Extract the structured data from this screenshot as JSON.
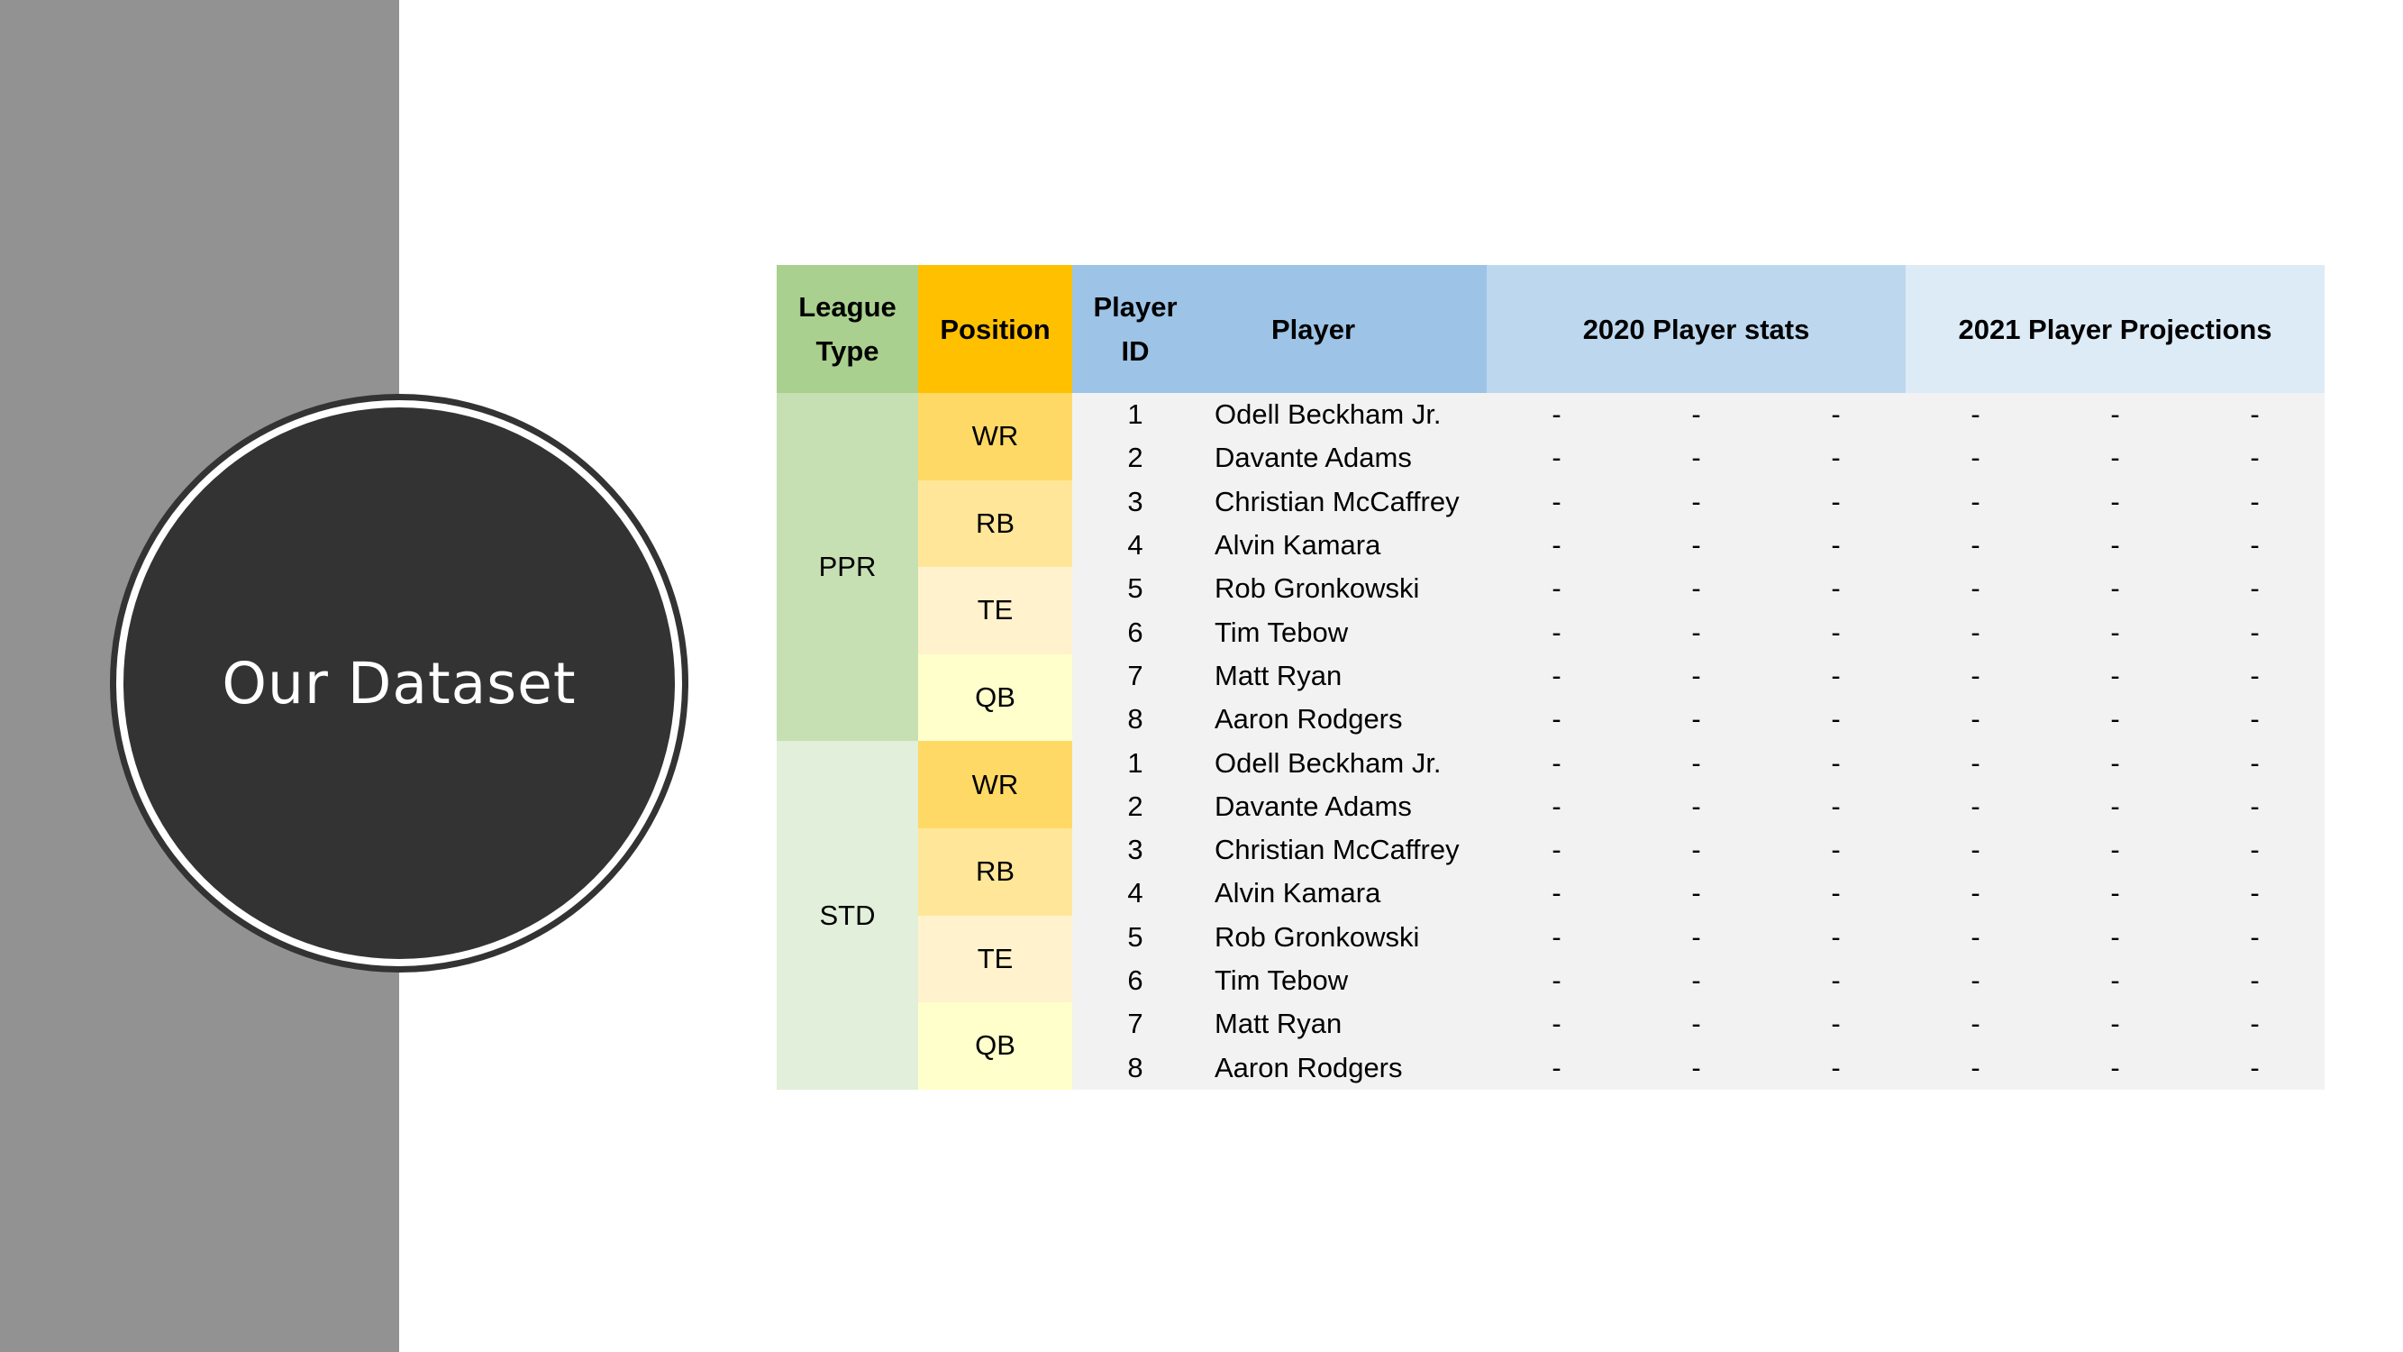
{
  "slide": {
    "title": "Our Dataset"
  },
  "table": {
    "headers": {
      "league_type": [
        "League",
        "Type"
      ],
      "position": "Position",
      "player_id": [
        "Player",
        "ID"
      ],
      "player": "Player",
      "stats_2020": "2020 Player stats",
      "proj_2021": "2021 Player Projections"
    },
    "groups": [
      {
        "league": "PPR",
        "positions": [
          {
            "pos": "WR",
            "players": [
              {
                "id": "1",
                "name": "Odell Beckham Jr."
              },
              {
                "id": "2",
                "name": "Davante Adams"
              }
            ]
          },
          {
            "pos": "RB",
            "players": [
              {
                "id": "3",
                "name": "Christian McCaffrey"
              },
              {
                "id": "4",
                "name": "Alvin Kamara"
              }
            ]
          },
          {
            "pos": "TE",
            "players": [
              {
                "id": "5",
                "name": "Rob Gronkowski"
              },
              {
                "id": "6",
                "name": "Tim Tebow"
              }
            ]
          },
          {
            "pos": "QB",
            "players": [
              {
                "id": "7",
                "name": "Matt Ryan"
              },
              {
                "id": "8",
                "name": "Aaron Rodgers"
              }
            ]
          }
        ]
      },
      {
        "league": "STD",
        "positions": [
          {
            "pos": "WR",
            "players": [
              {
                "id": "1",
                "name": "Odell Beckham Jr."
              },
              {
                "id": "2",
                "name": "Davante Adams"
              }
            ]
          },
          {
            "pos": "RB",
            "players": [
              {
                "id": "3",
                "name": "Christian McCaffrey"
              },
              {
                "id": "4",
                "name": "Alvin Kamara"
              }
            ]
          },
          {
            "pos": "TE",
            "players": [
              {
                "id": "5",
                "name": "Rob Gronkowski"
              },
              {
                "id": "6",
                "name": "Tim Tebow"
              }
            ]
          },
          {
            "pos": "QB",
            "players": [
              {
                "id": "7",
                "name": "Matt Ryan"
              },
              {
                "id": "8",
                "name": "Aaron Rodgers"
              }
            ]
          }
        ]
      }
    ],
    "placeholder_value": "-",
    "stat_columns_2020": 3,
    "stat_columns_2021": 3
  },
  "colors": {
    "left_band": "#929292",
    "circle": "#333333",
    "league_header": "#a9d08e",
    "position_header": "#ffc000",
    "player_header": "#9dc3e6",
    "stats_2020_header": "#bdd7ee",
    "proj_2021_header": "#ddebf7",
    "ppr": "#c6e0b4",
    "std": "#e2efda",
    "wr": "#ffd966",
    "rb": "#ffe699",
    "te": "#fff2cc",
    "qb": "#ffffcc",
    "data_bg": "#f2f2f2"
  }
}
